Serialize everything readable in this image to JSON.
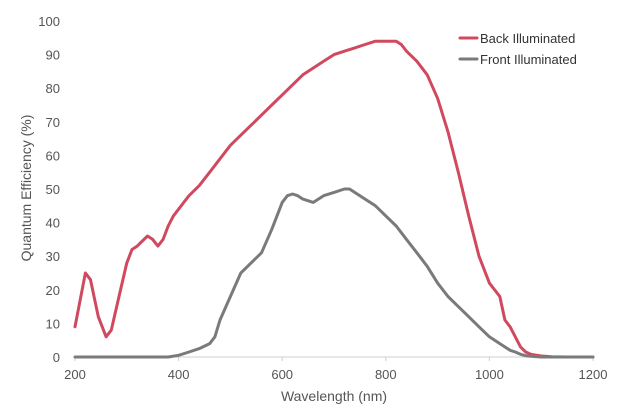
{
  "chart_data": {
    "type": "line",
    "xlabel": "Wavelength (nm)",
    "ylabel": "Quantum Efficiency (%)",
    "xlim": [
      200,
      1200
    ],
    "ylim": [
      0,
      100
    ],
    "xticks": [
      200,
      400,
      600,
      800,
      1000,
      1200
    ],
    "yticks": [
      0,
      10,
      20,
      30,
      40,
      50,
      60,
      70,
      80,
      90,
      100
    ],
    "grid": false,
    "legend_position": "top-right",
    "series": [
      {
        "name": "Back Illuminated",
        "color": "#d0495f",
        "x": [
          200,
          210,
          220,
          230,
          245,
          260,
          270,
          285,
          300,
          310,
          320,
          340,
          350,
          360,
          370,
          380,
          390,
          400,
          410,
          420,
          440,
          460,
          480,
          500,
          520,
          540,
          560,
          580,
          600,
          620,
          640,
          660,
          680,
          700,
          720,
          740,
          760,
          780,
          800,
          820,
          830,
          840,
          860,
          880,
          900,
          920,
          940,
          960,
          980,
          1000,
          1020,
          1030,
          1040,
          1050,
          1060,
          1070,
          1080,
          1100,
          1120,
          1150,
          1200
        ],
        "y": [
          9,
          17,
          25,
          23,
          12,
          6,
          8,
          18,
          28,
          32,
          33,
          36,
          35,
          33,
          35,
          39,
          42,
          44,
          46,
          48,
          51,
          55,
          59,
          63,
          66,
          69,
          72,
          75,
          78,
          81,
          84,
          86,
          88,
          90,
          91,
          92,
          93,
          94,
          94,
          94,
          93,
          91,
          88,
          84,
          77,
          67,
          55,
          42,
          30,
          22,
          18,
          11,
          9,
          6,
          3,
          1.5,
          0.8,
          0.3,
          0.1,
          0,
          0
        ]
      },
      {
        "name": "Front Illuminated",
        "color": "#7a7a7a",
        "x": [
          200,
          300,
          380,
          400,
          420,
          440,
          460,
          470,
          480,
          500,
          520,
          540,
          560,
          580,
          600,
          610,
          620,
          630,
          640,
          660,
          680,
          700,
          720,
          730,
          740,
          760,
          780,
          800,
          820,
          840,
          860,
          880,
          900,
          920,
          940,
          960,
          980,
          1000,
          1020,
          1040,
          1050,
          1060,
          1070,
          1080,
          1100,
          1200
        ],
        "y": [
          0,
          0,
          0,
          0.5,
          1.5,
          2.5,
          4,
          6,
          11,
          18,
          25,
          28,
          31,
          38,
          46,
          48,
          48.5,
          48,
          47,
          46,
          48,
          49,
          50,
          50,
          49,
          47,
          45,
          42,
          39,
          35,
          31,
          27,
          22,
          18,
          15,
          12,
          9,
          6,
          4,
          2,
          1.5,
          0.8,
          0.4,
          0.2,
          0,
          0
        ]
      }
    ]
  }
}
